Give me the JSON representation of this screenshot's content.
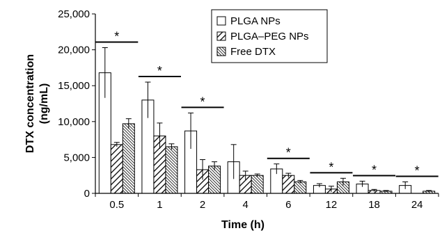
{
  "chart_data": {
    "type": "bar",
    "xlabel": "Time (h)",
    "ylabel": "DTX concentration\n(ng/mL)",
    "ylim": [
      0,
      25000
    ],
    "yticks": [
      "0",
      "5,000",
      "10,000",
      "15,000",
      "20,000",
      "25,000"
    ],
    "ytick_values": [
      0,
      5000,
      10000,
      15000,
      20000,
      25000
    ],
    "categories": [
      "0.5",
      "1",
      "2",
      "4",
      "6",
      "12",
      "18",
      "24"
    ],
    "series": [
      {
        "name": "PLGA NPs",
        "pattern": "open",
        "values": [
          16800,
          13000,
          8700,
          4400,
          3400,
          1100,
          1300,
          1100
        ],
        "errors": [
          3500,
          2500,
          2500,
          2400,
          700,
          250,
          400,
          500
        ]
      },
      {
        "name": "PLGA–PEG NPs",
        "pattern": "wide-hatch",
        "values": [
          6800,
          8000,
          3300,
          2500,
          2500,
          600,
          400,
          0
        ],
        "errors": [
          300,
          1800,
          1400,
          600,
          300,
          400,
          150,
          0
        ]
      },
      {
        "name": "Free DTX",
        "pattern": "dense-hatch",
        "values": [
          9700,
          6500,
          3800,
          2500,
          1600,
          1600,
          300,
          300
        ],
        "errors": [
          700,
          400,
          600,
          200,
          200,
          500,
          100,
          100
        ]
      }
    ],
    "significance": [
      "*",
      "*",
      "*",
      "",
      "*",
      "*",
      "*",
      "*"
    ],
    "legend_placement": "top-right",
    "grid": false
  }
}
